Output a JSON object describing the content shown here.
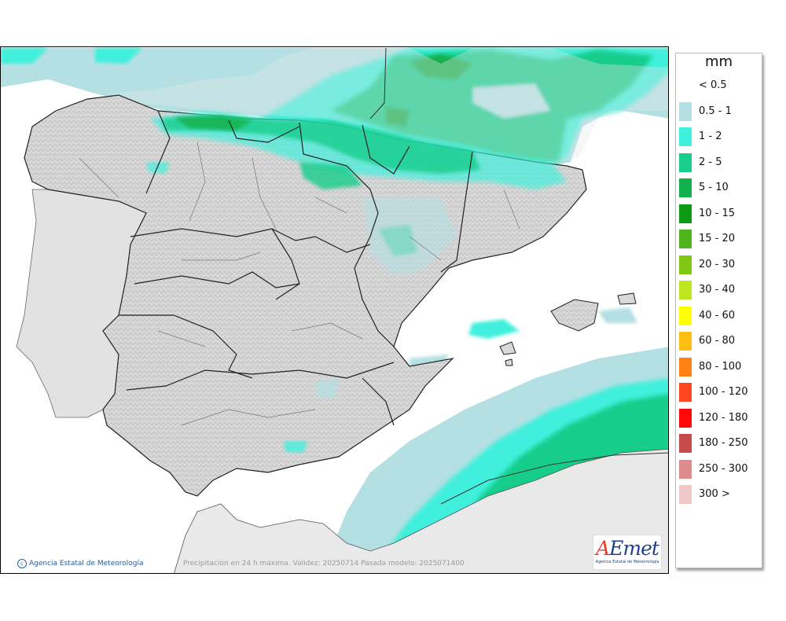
{
  "map": {
    "copyright": "Agencia Estatal de Meteorología",
    "caption": "Precipitación en 24 h máxima. Validez: 20250714 Pasada modelo: 2025071400",
    "logo_text": "AEmet",
    "logo_a": "A",
    "logo_rest": "Emet",
    "logo_subtitle": "Agencia Estatal de Meteorología"
  },
  "legend": {
    "unit": "mm",
    "items": [
      {
        "label": "< 0.5",
        "color": "#ffffff"
      },
      {
        "label": "0.5 - 1",
        "color": "#b4e0e3"
      },
      {
        "label": "1 - 2",
        "color": "#3ff0dc"
      },
      {
        "label": "2 - 5",
        "color": "#19cd8c"
      },
      {
        "label": "5 - 10",
        "color": "#12b04c"
      },
      {
        "label": "10 - 15",
        "color": "#0a9a14"
      },
      {
        "label": "15 - 20",
        "color": "#50b41e"
      },
      {
        "label": "20 - 30",
        "color": "#80c814"
      },
      {
        "label": "30 - 40",
        "color": "#bee61e"
      },
      {
        "label": "40 - 60",
        "color": "#fdfd05"
      },
      {
        "label": "60 - 80",
        "color": "#ffbe14"
      },
      {
        "label": "80 - 100",
        "color": "#ff8214"
      },
      {
        "label": "100 - 120",
        "color": "#ff461e"
      },
      {
        "label": "120 - 180",
        "color": "#ff0a0a"
      },
      {
        "label": "180 - 250",
        "color": "#c84b4b"
      },
      {
        "label": "250 - 300",
        "color": "#dc8c8c"
      },
      {
        "label": "300 >",
        "color": "#f0c8c8"
      }
    ]
  }
}
